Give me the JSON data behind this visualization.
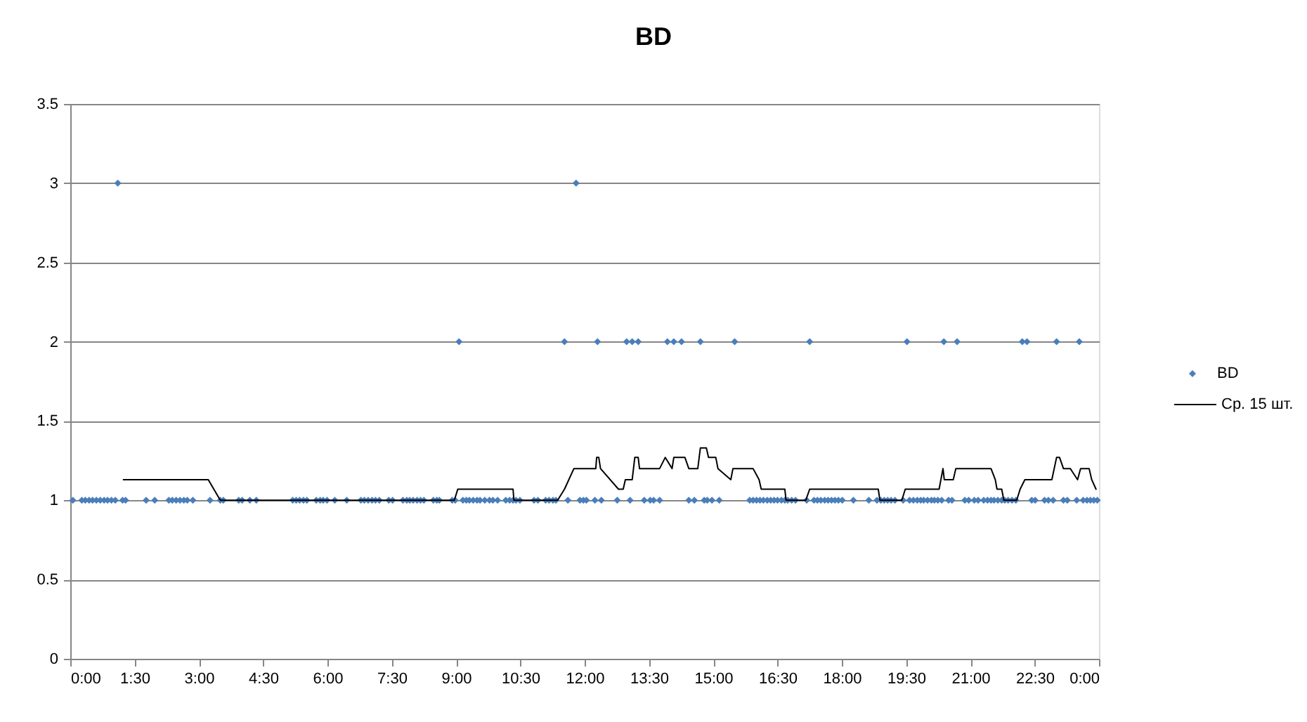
{
  "chart_data": {
    "type": "scatter",
    "title": "BD",
    "xlim": [
      0,
      24
    ],
    "xticks": [
      {
        "value": 0,
        "label": "0:00"
      },
      {
        "value": 1.5,
        "label": "1:30"
      },
      {
        "value": 3,
        "label": "3:00"
      },
      {
        "value": 4.5,
        "label": "4:30"
      },
      {
        "value": 6,
        "label": "6:00"
      },
      {
        "value": 7.5,
        "label": "7:30"
      },
      {
        "value": 9,
        "label": "9:00"
      },
      {
        "value": 10.5,
        "label": "10:30"
      },
      {
        "value": 12,
        "label": "12:00"
      },
      {
        "value": 13.5,
        "label": "13:30"
      },
      {
        "value": 15,
        "label": "15:00"
      },
      {
        "value": 16.5,
        "label": "16:30"
      },
      {
        "value": 18,
        "label": "18:00"
      },
      {
        "value": 19.5,
        "label": "19:30"
      },
      {
        "value": 21,
        "label": "21:00"
      },
      {
        "value": 22.5,
        "label": "22:30"
      },
      {
        "value": 24,
        "label": "0:00"
      }
    ],
    "ylim": [
      0,
      3.5
    ],
    "yticks": [
      0,
      0.5,
      1,
      1.5,
      2,
      2.5,
      3,
      3.5
    ],
    "grid": "y",
    "legend": "right",
    "series": [
      {
        "name": "BD",
        "color": "#4a7ebb",
        "marker": "diamond",
        "x": [
          0.06,
          0.27,
          0.35,
          0.44,
          0.52,
          0.61,
          0.7,
          0.79,
          0.87,
          0.96,
          1.05,
          1.11,
          1.22,
          1.29,
          1.77,
          1.97,
          2.3,
          2.38,
          2.47,
          2.56,
          2.65,
          2.73,
          2.86,
          3.26,
          3.5,
          3.57,
          3.93,
          4.01,
          4.19,
          4.34,
          5.19,
          5.27,
          5.35,
          5.44,
          5.52,
          5.74,
          5.83,
          5.9,
          5.99,
          6.17,
          6.45,
          6.78,
          6.86,
          6.95,
          7.04,
          7.12,
          7.21,
          7.43,
          7.52,
          7.76,
          7.85,
          7.92,
          8.0,
          8.09,
          8.17,
          8.25,
          8.47,
          8.55,
          8.61,
          8.91,
          8.98,
          9.07,
          9.16,
          9.24,
          9.31,
          9.4,
          9.49,
          9.56,
          9.67,
          9.78,
          9.86,
          9.97,
          10.16,
          10.25,
          10.33,
          10.4,
          10.49,
          10.82,
          10.91,
          11.09,
          11.17,
          11.26,
          11.33,
          11.53,
          11.61,
          11.8,
          11.89,
          11.97,
          12.04,
          12.24,
          12.3,
          12.39,
          12.76,
          12.98,
          13.06,
          13.11,
          13.25,
          13.39,
          13.53,
          13.61,
          13.75,
          13.93,
          14.08,
          14.26,
          14.43,
          14.56,
          14.7,
          14.79,
          14.86,
          14.97,
          15.14,
          15.5,
          15.85,
          15.93,
          16.01,
          16.09,
          16.17,
          16.26,
          16.34,
          16.42,
          16.5,
          16.59,
          16.67,
          16.74,
          16.83,
          16.92,
          17.18,
          17.25,
          17.35,
          17.43,
          17.51,
          17.6,
          17.68,
          17.76,
          17.84,
          17.92,
          18.01,
          18.27,
          18.63,
          18.82,
          18.91,
          18.99,
          19.07,
          19.15,
          19.24,
          19.43,
          19.52,
          19.58,
          19.67,
          19.76,
          19.84,
          19.91,
          20.0,
          20.09,
          20.16,
          20.24,
          20.33,
          20.38,
          20.49,
          20.57,
          20.69,
          20.87,
          20.96,
          21.09,
          21.18,
          21.31,
          21.4,
          21.48,
          21.55,
          21.64,
          21.73,
          21.8,
          21.88,
          21.97,
          22.06,
          22.21,
          22.32,
          22.43,
          22.51,
          22.73,
          22.82,
          22.93,
          23.01,
          23.17,
          23.26,
          23.48,
          23.54,
          23.63,
          23.72,
          23.8,
          23.88,
          23.96
        ],
        "values": [
          1,
          1,
          1,
          1,
          1,
          1,
          1,
          1,
          1,
          1,
          1,
          3,
          1,
          1,
          1,
          1,
          1,
          1,
          1,
          1,
          1,
          1,
          1,
          1,
          1,
          1,
          1,
          1,
          1,
          1,
          1,
          1,
          1,
          1,
          1,
          1,
          1,
          1,
          1,
          1,
          1,
          1,
          1,
          1,
          1,
          1,
          1,
          1,
          1,
          1,
          1,
          1,
          1,
          1,
          1,
          1,
          1,
          1,
          1,
          1,
          1,
          2,
          1,
          1,
          1,
          1,
          1,
          1,
          1,
          1,
          1,
          1,
          1,
          1,
          1,
          1,
          1,
          1,
          1,
          1,
          1,
          1,
          1,
          2,
          1,
          3,
          1,
          1,
          1,
          1,
          2,
          1,
          1,
          2,
          1,
          2,
          2,
          1,
          1,
          1,
          1,
          2,
          2,
          2,
          1,
          1,
          2,
          1,
          1,
          1,
          1,
          2,
          1,
          1,
          1,
          1,
          1,
          1,
          1,
          1,
          1,
          1,
          1,
          1,
          1,
          1,
          1,
          2,
          1,
          1,
          1,
          1,
          1,
          1,
          1,
          1,
          1,
          1,
          1,
          1,
          1,
          1,
          1,
          1,
          1,
          1,
          2,
          1,
          1,
          1,
          1,
          1,
          1,
          1,
          1,
          1,
          1,
          2,
          1,
          1,
          2,
          1,
          1,
          1,
          1,
          1,
          1,
          1,
          1,
          1,
          1,
          1,
          1,
          1,
          1,
          2,
          2,
          1,
          1,
          1,
          1,
          1,
          2,
          1,
          1,
          1,
          2,
          1,
          1,
          1,
          1,
          1
        ]
      },
      {
        "name": "Ср. 15 шт.",
        "type": "line",
        "color": "#000000",
        "line_style": "solid",
        "x": [
          1.24,
          3.22,
          3.5,
          8.96,
          9.04,
          10.33,
          10.35,
          11.37,
          11.53,
          11.75,
          12.26,
          12.28,
          12.33,
          12.37,
          12.79,
          12.9,
          12.95,
          13.11,
          13.17,
          13.25,
          13.28,
          13.75,
          13.88,
          14.04,
          14.08,
          14.34,
          14.43,
          14.64,
          14.7,
          14.84,
          14.89,
          15.06,
          15.11,
          15.41,
          15.46,
          15.93,
          16.07,
          16.12,
          16.67,
          16.7,
          17.16,
          17.25,
          18.85,
          18.89,
          19.4,
          19.48,
          20.27,
          20.36,
          20.39,
          20.6,
          20.66,
          21.48,
          21.58,
          21.62,
          21.73,
          21.78,
          22.08,
          22.16,
          22.27,
          22.9,
          23.01,
          23.08,
          23.17,
          23.33,
          23.5,
          23.57,
          23.77,
          23.83,
          23.93
        ],
        "values": [
          1.13,
          1.13,
          1,
          1,
          1.07,
          1.07,
          1,
          1,
          1.07,
          1.2,
          1.2,
          1.27,
          1.27,
          1.2,
          1.07,
          1.07,
          1.13,
          1.13,
          1.27,
          1.27,
          1.2,
          1.2,
          1.27,
          1.2,
          1.27,
          1.27,
          1.2,
          1.2,
          1.33,
          1.33,
          1.27,
          1.27,
          1.2,
          1.13,
          1.2,
          1.2,
          1.13,
          1.07,
          1.07,
          1,
          1,
          1.07,
          1.07,
          1,
          1,
          1.07,
          1.07,
          1.2,
          1.13,
          1.13,
          1.2,
          1.2,
          1.13,
          1.07,
          1.07,
          1,
          1,
          1.07,
          1.13,
          1.13,
          1.27,
          1.27,
          1.2,
          1.2,
          1.13,
          1.2,
          1.2,
          1.13,
          1.07
        ]
      }
    ]
  }
}
